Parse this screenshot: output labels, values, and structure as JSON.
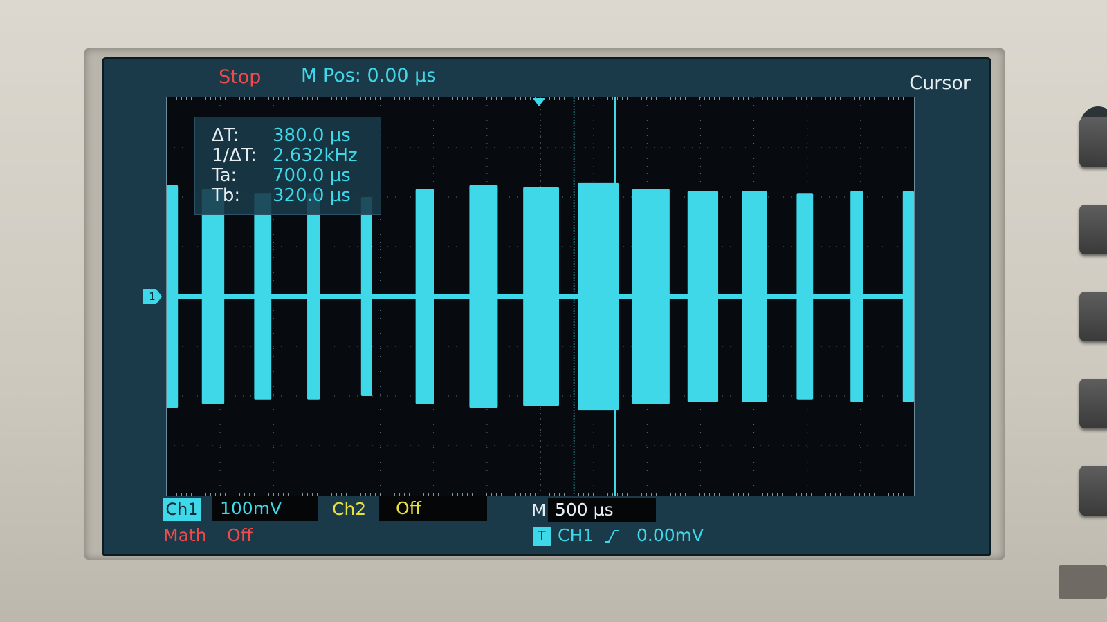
{
  "top_bar": {
    "run_state": "Stop",
    "horizontal_position": "M Pos: 0.00 µs",
    "menu_title": "Cursor"
  },
  "cursor_readout": {
    "rows": [
      {
        "label": "ΔT:",
        "value": "380.0 µs"
      },
      {
        "label": "1/ΔT:",
        "value": "2.632kHz"
      },
      {
        "label": "Ta:",
        "value": "700.0 µs"
      },
      {
        "label": "Tb:",
        "value": "320.0 µs"
      }
    ]
  },
  "channel_marker": "1",
  "bottom_bar": {
    "ch1_label": "Ch1",
    "ch1_scale": "100mV",
    "ch2_label": "Ch2",
    "ch2_state": "Off",
    "time_label": "M",
    "time_scale": "500 µs",
    "math_label": "Math",
    "math_state": "Off",
    "trigger_icon": "T",
    "trigger_source": "CH1",
    "trigger_slope_icon": "rising-edge-icon",
    "trigger_level": "0.00mV"
  },
  "colors": {
    "ch1": "#3ed8e8",
    "ch2": "#e8e03a",
    "math": "#f04a4a",
    "screen_bg": "#1a3a4a",
    "grid_bg": "#070b0f"
  },
  "waveform": {
    "bursts": [
      {
        "start": 0.0,
        "end": 0.015,
        "amp": 0.56
      },
      {
        "start": 0.047,
        "end": 0.077,
        "amp": 0.54
      },
      {
        "start": 0.117,
        "end": 0.14,
        "amp": 0.52
      },
      {
        "start": 0.188,
        "end": 0.205,
        "amp": 0.52
      },
      {
        "start": 0.26,
        "end": 0.275,
        "amp": 0.5
      },
      {
        "start": 0.333,
        "end": 0.358,
        "amp": 0.54
      },
      {
        "start": 0.405,
        "end": 0.443,
        "amp": 0.56
      },
      {
        "start": 0.477,
        "end": 0.525,
        "amp": 0.55
      },
      {
        "start": 0.55,
        "end": 0.605,
        "amp": 0.57
      },
      {
        "start": 0.623,
        "end": 0.673,
        "amp": 0.54
      },
      {
        "start": 0.697,
        "end": 0.738,
        "amp": 0.53
      },
      {
        "start": 0.77,
        "end": 0.803,
        "amp": 0.53
      },
      {
        "start": 0.843,
        "end": 0.865,
        "amp": 0.52
      },
      {
        "start": 0.915,
        "end": 0.932,
        "amp": 0.53
      },
      {
        "start": 0.985,
        "end": 1.0,
        "amp": 0.53
      }
    ],
    "cursor_a": 0.545,
    "cursor_b": 0.6
  }
}
